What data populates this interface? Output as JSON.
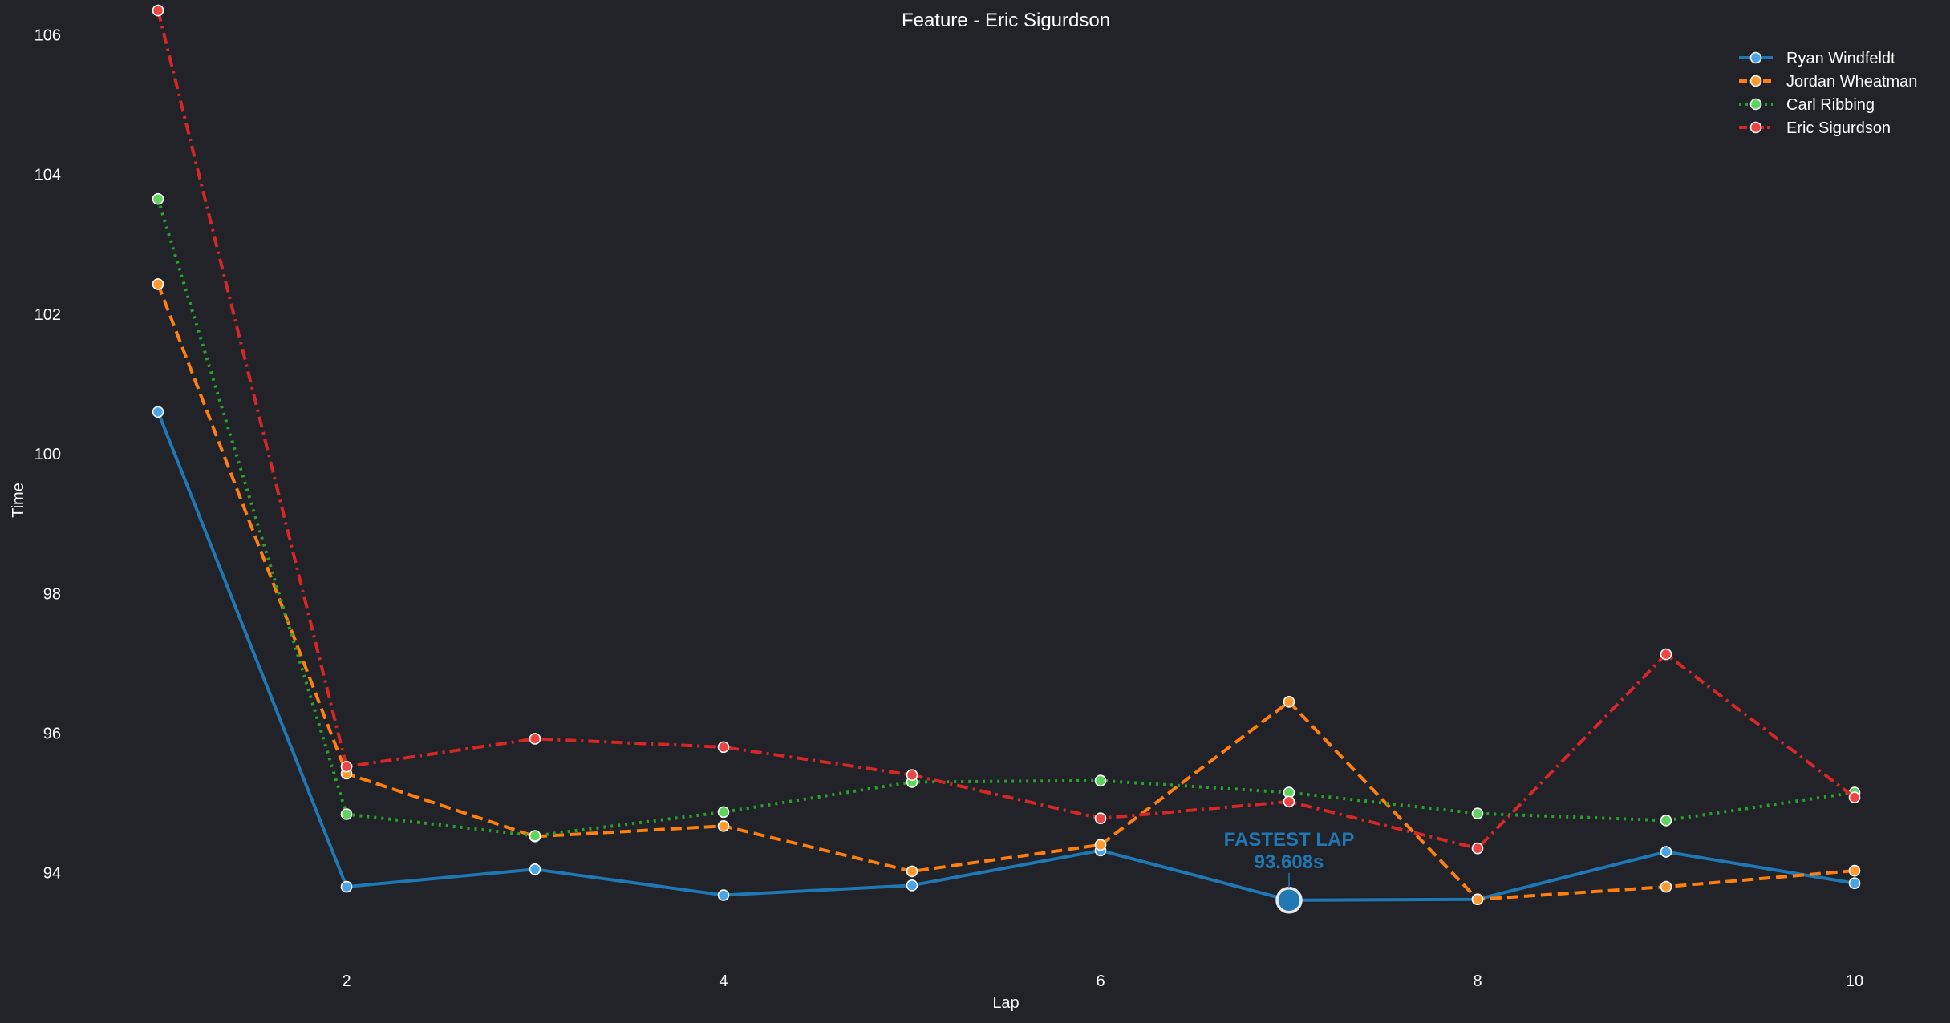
{
  "chart_data": {
    "type": "line",
    "title": "Feature - Eric Sigurdson",
    "xlabel": "Lap",
    "ylabel": "Time",
    "x": [
      1,
      2,
      3,
      4,
      5,
      6,
      7,
      8,
      9,
      10
    ],
    "xlim": [
      1,
      10
    ],
    "ylim": [
      92.4,
      106.5
    ],
    "xticks": [
      2,
      4,
      6,
      8,
      10
    ],
    "yticks": [
      94,
      96,
      98,
      100,
      102,
      104,
      106
    ],
    "grid": false,
    "legend_position": "top-right",
    "series": [
      {
        "name": "Ryan Windfeldt",
        "color": "#1f77b4",
        "marker_color": "#4aa3e8",
        "style": "solid",
        "values": [
          100.6,
          93.8,
          94.05,
          93.68,
          93.82,
          94.32,
          93.608,
          93.62,
          94.3,
          93.85
        ]
      },
      {
        "name": "Jordan Wheatman",
        "color": "#ff7f0e",
        "marker_color": "#ff9a33",
        "style": "dashed",
        "values": [
          102.43,
          95.42,
          94.52,
          94.67,
          94.02,
          94.4,
          96.45,
          93.62,
          93.8,
          94.03
        ]
      },
      {
        "name": "Carl Ribbing",
        "color": "#2ca02c",
        "marker_color": "#5fd35f",
        "style": "dotted",
        "values": [
          103.65,
          94.84,
          94.53,
          94.87,
          95.3,
          95.32,
          95.15,
          94.85,
          94.75,
          95.15
        ]
      },
      {
        "name": "Eric Sigurdson",
        "color": "#d62728",
        "marker_color": "#ef4444",
        "style": "dashdot",
        "values": [
          106.35,
          95.52,
          95.92,
          95.8,
          95.4,
          94.78,
          95.02,
          94.35,
          97.13,
          95.08
        ]
      }
    ],
    "annotations": [
      {
        "label": "FASTEST LAP",
        "value_text": "93.608s",
        "series": "Ryan Windfeldt",
        "x": 7,
        "y": 93.608,
        "color": "#1f77b4"
      }
    ]
  }
}
